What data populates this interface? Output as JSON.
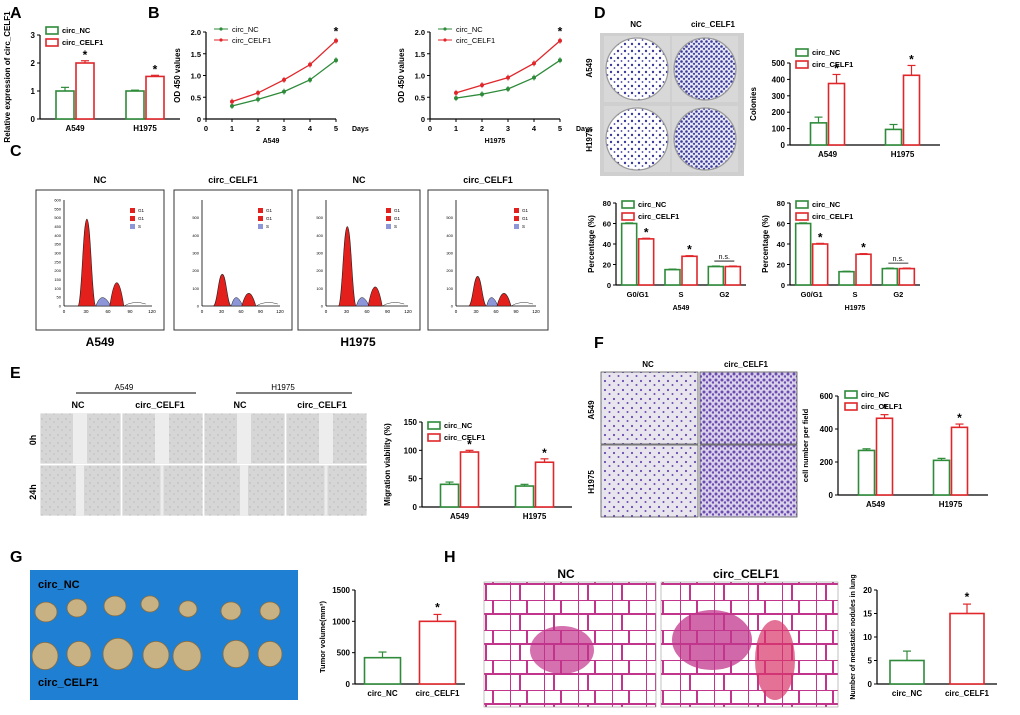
{
  "panel_letters": [
    "A",
    "B",
    "C",
    "D",
    "E",
    "F",
    "G",
    "H"
  ],
  "legend": {
    "nc": "circ_NC",
    "celf1": "circ_CELF1"
  },
  "colors": {
    "nc": "#2e8b3a",
    "celf1": "#e0262a",
    "cellBlue": "#3a3a9c",
    "cellViolet": "#6b4bb0",
    "g1": "#e3201b",
    "sPhase": "#8c96d8",
    "tumorBg": "#1f7fd2",
    "tumor": "#c8b183",
    "lungPink": "#c2358c"
  },
  "common": {
    "sig": "*",
    "ns": "n.s.",
    "nc": "NC",
    "celf1": "circ_CELF1",
    "a549": "A549",
    "h1975": "H1975",
    "days": "Days",
    "g1_label": "G1",
    "s_label": "S",
    "h0": "0h",
    "h24": "24h"
  },
  "chart_data": [
    {
      "id": "A",
      "type": "bar",
      "categories": [
        "A549",
        "H1975"
      ],
      "series": [
        {
          "name": "circ_NC",
          "values": [
            1.0,
            1.0
          ],
          "err": [
            0.13,
            0.03
          ]
        },
        {
          "name": "circ_CELF1",
          "values": [
            2.0,
            1.52
          ],
          "err": [
            0.08,
            0.04
          ]
        }
      ],
      "sig": [
        "*",
        "*"
      ],
      "ylabel": "Relative expression of circ_CELF1",
      "ylim": [
        0,
        3
      ],
      "yticks": [
        "0",
        "1",
        "2",
        "3"
      ]
    },
    {
      "id": "B1",
      "type": "line",
      "x": [
        1,
        2,
        3,
        4,
        5
      ],
      "series": [
        {
          "name": "circ_NC",
          "values": [
            0.3,
            0.45,
            0.63,
            0.9,
            1.35
          ]
        },
        {
          "name": "circ_CELF1",
          "values": [
            0.4,
            0.6,
            0.9,
            1.25,
            1.8
          ]
        }
      ],
      "sig": "*",
      "ylabel": "OD 450 values",
      "xlabel": "A549",
      "xunit": "Days",
      "xticks": [
        "0",
        "1",
        "2",
        "3",
        "4",
        "5"
      ],
      "yticks": [
        "0",
        "0.5",
        "1.0",
        "1.5",
        "2.0"
      ],
      "ylim": [
        0,
        2
      ],
      "xlim": [
        0,
        5
      ]
    },
    {
      "id": "B2",
      "type": "line",
      "x": [
        1,
        2,
        3,
        4,
        5
      ],
      "series": [
        {
          "name": "circ_NC",
          "values": [
            0.48,
            0.57,
            0.69,
            0.95,
            1.35
          ]
        },
        {
          "name": "circ_CELF1",
          "values": [
            0.6,
            0.78,
            0.95,
            1.28,
            1.8
          ]
        }
      ],
      "sig": "*",
      "ylabel": "OD 450 values",
      "xlabel": "H1975",
      "xunit": "Days",
      "xticks": [
        "0",
        "1",
        "2",
        "3",
        "4",
        "5"
      ],
      "yticks": [
        "0",
        "0.5",
        "1.0",
        "1.5",
        "2.0"
      ],
      "ylim": [
        0,
        2
      ],
      "xlim": [
        0,
        5
      ]
    },
    {
      "id": "D_colonies",
      "type": "bar",
      "categories": [
        "A549",
        "H1975"
      ],
      "series": [
        {
          "name": "circ_NC",
          "values": [
            135,
            95
          ],
          "err": [
            35,
            30
          ]
        },
        {
          "name": "circ_CELF1",
          "values": [
            375,
            425
          ],
          "err": [
            55,
            60
          ]
        }
      ],
      "sig": [
        "*",
        "*"
      ],
      "ylabel": "Colonies",
      "ylim": [
        0,
        500
      ],
      "yticks": [
        "0",
        "100",
        "200",
        "300",
        "400",
        "500"
      ]
    },
    {
      "id": "D_cycle_A549",
      "type": "bar",
      "categories": [
        "G0/G1",
        "S",
        "G2"
      ],
      "series": [
        {
          "name": "circ_NC",
          "values": [
            60,
            15,
            18
          ],
          "err": [
            0.6,
            0.5,
            0.5
          ]
        },
        {
          "name": "circ_CELF1",
          "values": [
            45,
            28,
            18
          ],
          "err": [
            0.6,
            0.6,
            0.5
          ]
        }
      ],
      "sig": [
        "*",
        "*",
        "n.s."
      ],
      "ylabel": "Percentage (%)",
      "xlabel": "A549",
      "ylim": [
        0,
        80
      ],
      "yticks": [
        "0",
        "20",
        "40",
        "60",
        "80"
      ]
    },
    {
      "id": "D_cycle_H1975",
      "type": "bar",
      "categories": [
        "G0/G1",
        "S",
        "G2"
      ],
      "series": [
        {
          "name": "circ_NC",
          "values": [
            60,
            13,
            16
          ],
          "err": [
            0.6,
            0.4,
            0.5
          ]
        },
        {
          "name": "circ_CELF1",
          "values": [
            40,
            30,
            16
          ],
          "err": [
            0.6,
            0.6,
            0.5
          ]
        }
      ],
      "sig": [
        "*",
        "*",
        "n.s."
      ],
      "ylabel": "Percentage (%)",
      "xlabel": "H1975",
      "ylim": [
        0,
        80
      ],
      "yticks": [
        "0",
        "20",
        "40",
        "60",
        "80"
      ]
    },
    {
      "id": "E",
      "type": "bar",
      "categories": [
        "A549",
        "H1975"
      ],
      "series": [
        {
          "name": "circ_NC",
          "values": [
            40,
            37
          ],
          "err": [
            4,
            3
          ]
        },
        {
          "name": "circ_CELF1",
          "values": [
            97,
            79
          ],
          "err": [
            3,
            6
          ]
        }
      ],
      "sig": [
        "*",
        "*"
      ],
      "ylabel": "Migration viability (%)",
      "ylim": [
        0,
        150
      ],
      "yticks": [
        "0",
        "50",
        "100",
        "150"
      ]
    },
    {
      "id": "F",
      "type": "bar",
      "categories": [
        "A549",
        "H1975"
      ],
      "series": [
        {
          "name": "circ_NC",
          "values": [
            270,
            210
          ],
          "err": [
            10,
            12
          ]
        },
        {
          "name": "circ_CELF1",
          "values": [
            465,
            410
          ],
          "err": [
            22,
            20
          ]
        }
      ],
      "sig": [
        "*",
        "*"
      ],
      "ylabel": "cell number per field",
      "ylim": [
        0,
        600
      ],
      "yticks": [
        "0",
        "200",
        "400",
        "600"
      ]
    },
    {
      "id": "G",
      "type": "bar",
      "categories": [
        "circ_NC",
        "circ_CELF1"
      ],
      "values": [
        420,
        1000
      ],
      "err": [
        90,
        110
      ],
      "sig": "*",
      "ylabel": "Tumor volume(mm³)",
      "ylim": [
        0,
        1500
      ],
      "yticks": [
        "0",
        "500",
        "1000",
        "1500"
      ]
    },
    {
      "id": "H",
      "type": "bar",
      "categories": [
        "circ_NC",
        "circ_CELF1"
      ],
      "values": [
        5,
        15
      ],
      "err": [
        2,
        2
      ],
      "sig": "*",
      "ylabel": "Number of metastatic nodules in lung",
      "ylim": [
        0,
        20
      ],
      "yticks": [
        "0",
        "5",
        "10",
        "15",
        "20"
      ]
    }
  ],
  "flow": {
    "yticks": [
      "0",
      "50",
      "100",
      "150",
      "200",
      "250",
      "300",
      "350",
      "400",
      "450",
      "500",
      "550",
      "600"
    ],
    "xticks": [
      "0",
      "30",
      "60",
      "90",
      "120"
    ],
    "legend": [
      "G1",
      "G1",
      "S"
    ],
    "titles": [
      "NC",
      "circ_CELF1",
      "NC",
      "circ_CELF1"
    ],
    "groups": [
      "A549",
      "H1975"
    ]
  }
}
